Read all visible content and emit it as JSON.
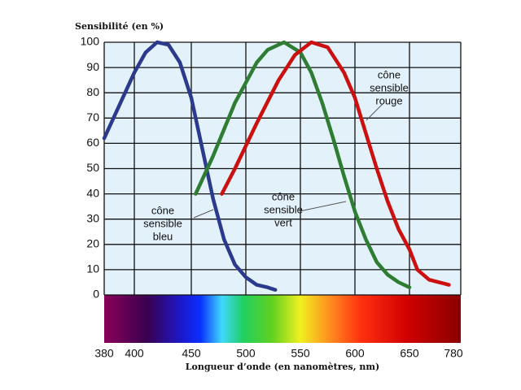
{
  "chart_data": {
    "type": "line",
    "y_axis_label": "Sensibilité (en %)",
    "x_axis_label": "Longueur d’onde (en nanomètres, nm)",
    "xlim": [
      380,
      780
    ],
    "xticks": [
      380,
      400,
      450,
      500,
      550,
      600,
      650,
      780
    ],
    "ylim": [
      0,
      100
    ],
    "yticks": [
      0,
      10,
      20,
      30,
      40,
      50,
      60,
      70,
      80,
      90,
      100
    ],
    "grid": true,
    "series": [
      {
        "name": [
          "cône",
          "sensible",
          "bleu"
        ],
        "color": "#2b3a8c",
        "x": [
          380,
          390,
          400,
          410,
          420,
          430,
          440,
          450,
          460,
          470,
          480,
          490,
          500,
          510,
          520,
          527
        ],
        "values": [
          62,
          75,
          88,
          96,
          100,
          99,
          92,
          78,
          58,
          38,
          22,
          12,
          7,
          4,
          3,
          2
        ]
      },
      {
        "name": [
          "cône",
          "sensible",
          "vert"
        ],
        "color": "#2e7d32",
        "x": [
          454,
          470,
          490,
          510,
          520,
          535,
          550,
          560,
          570,
          580,
          590,
          600,
          610,
          620,
          630,
          640,
          650
        ],
        "values": [
          40,
          55,
          76,
          92,
          97,
          100,
          96,
          88,
          76,
          62,
          47,
          33,
          22,
          13,
          8,
          5,
          3
        ]
      },
      {
        "name": [
          "cône",
          "sensible",
          "rouge"
        ],
        "color": "#cc1010",
        "x": [
          478,
          490,
          510,
          530,
          545,
          560,
          575,
          590,
          600,
          610,
          620,
          630,
          640,
          650,
          670,
          700,
          750
        ],
        "values": [
          40,
          50,
          68,
          85,
          95,
          100,
          98,
          88,
          78,
          64,
          50,
          37,
          26,
          18,
          10,
          6,
          4
        ]
      }
    ]
  }
}
